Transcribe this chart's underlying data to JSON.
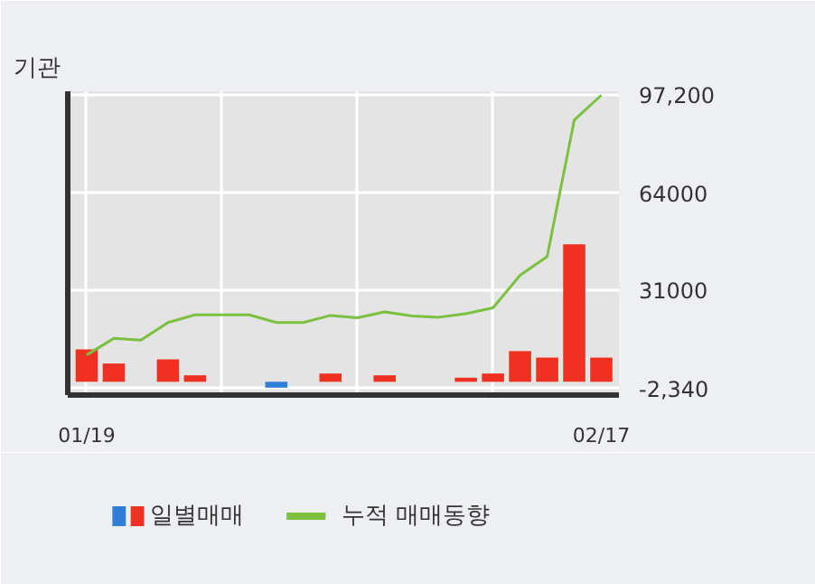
{
  "chart_data": {
    "type": "bar",
    "title": "기관",
    "categories": [
      "01/19",
      null,
      null,
      null,
      null,
      null,
      null,
      null,
      null,
      null,
      null,
      null,
      null,
      null,
      null,
      null,
      null,
      null,
      null,
      "02/17"
    ],
    "series": [
      {
        "name": "일별매매",
        "colors": [
          "#f03020",
          "#f03020",
          "#f03020",
          "#f03020",
          "#f03020",
          "#f03020",
          "#f03020",
          "#2f7fd8",
          "#f03020",
          "#f03020",
          "#f03020",
          "#f03020",
          "#f03020",
          "#f03020",
          "#f03020",
          "#f03020",
          "#f03020",
          "#f03020",
          "#f03020",
          "#f03020"
        ],
        "values": [
          11000,
          6200,
          null,
          7600,
          2200,
          null,
          null,
          -2000,
          null,
          2800,
          null,
          2200,
          null,
          null,
          1400,
          2800,
          10400,
          8200,
          46600,
          8200
        ]
      },
      {
        "name": "누적 매매동향",
        "type": "line",
        "color": "#7cc040",
        "values": [
          9100,
          14700,
          14100,
          20100,
          22700,
          22700,
          22700,
          20100,
          20100,
          22500,
          21700,
          23700,
          22300,
          21900,
          23100,
          25100,
          36100,
          42500,
          88700,
          97200
        ]
      }
    ],
    "ylim": [
      -4500,
      98500
    ],
    "yticks": [
      {
        "value": 97200,
        "label": "97,200"
      },
      64000,
      31000,
      {
        "value": -2340,
        "label": "-2,340"
      }
    ],
    "grid": true,
    "legend": "bottom"
  }
}
